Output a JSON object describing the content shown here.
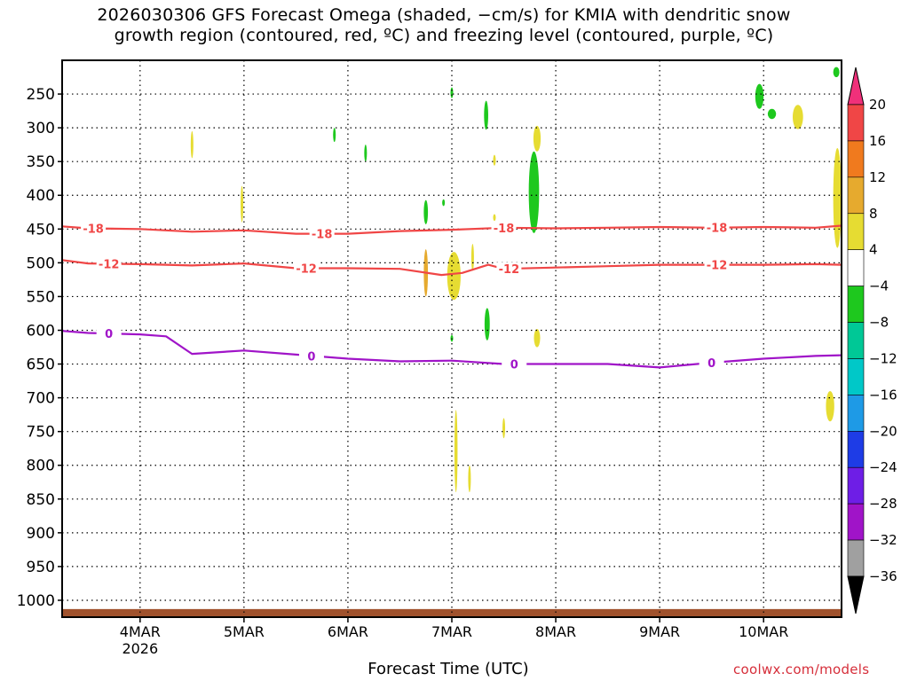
{
  "chart_data": {
    "type": "heatmap",
    "title_line1": "2026030306 GFS Forecast Omega (shaded, −cm/s) for KMIA with dendritic snow",
    "title_line2": "growth region (contoured, red, ºC) and freezing level (contoured, purple, ºC)",
    "xlabel": "Forecast Time (UTC)",
    "x_ticks": [
      {
        "label": "4MAR",
        "sub": "2026",
        "day": 4
      },
      {
        "label": "5MAR",
        "sub": "",
        "day": 5
      },
      {
        "label": "6MAR",
        "sub": "",
        "day": 6
      },
      {
        "label": "7MAR",
        "sub": "",
        "day": 7
      },
      {
        "label": "8MAR",
        "sub": "",
        "day": 8
      },
      {
        "label": "9MAR",
        "sub": "",
        "day": 9
      },
      {
        "label": "10MAR",
        "sub": "",
        "day": 10
      }
    ],
    "xlim": [
      3.25,
      10.75
    ],
    "ylabel": "",
    "y_ticks": [
      250,
      300,
      350,
      400,
      450,
      500,
      550,
      600,
      650,
      700,
      750,
      800,
      850,
      900,
      950,
      1000
    ],
    "ylim": [
      200,
      1025
    ],
    "colorbar": {
      "labels": [
        "20",
        "16",
        "12",
        "8",
        "4",
        "−4",
        "−8",
        "−12",
        "−16",
        "−20",
        "−24",
        "−28",
        "−32",
        "−36"
      ],
      "colors": [
        "#f0307a",
        "#f04646",
        "#f07a1e",
        "#e6aa2e",
        "#e6dc32",
        "#ffffff",
        "#1ec81e",
        "#00c896",
        "#00c8c8",
        "#1e9ae6",
        "#1e3ce6",
        "#6e1ee6",
        "#a014c8",
        "#a0a0a0",
        "#000000"
      ]
    },
    "contours": [
      {
        "name": "-18",
        "color": "#f04646",
        "x": [
          3.25,
          3.5,
          4.0,
          4.5,
          5.0,
          5.5,
          6.0,
          6.5,
          7.0,
          7.5,
          8.0,
          8.5,
          9.0,
          9.5,
          10.0,
          10.5,
          10.75
        ],
        "y": [
          446,
          449,
          450,
          454,
          452,
          457,
          457,
          453,
          451,
          448,
          449,
          448,
          447,
          448,
          447,
          448,
          445
        ],
        "labels": [
          {
            "x": 3.55,
            "text": "-18"
          },
          {
            "x": 5.75,
            "text": "-18"
          },
          {
            "x": 7.5,
            "text": "-18"
          },
          {
            "x": 9.55,
            "text": "-18"
          }
        ]
      },
      {
        "name": "-12",
        "color": "#f04646",
        "x": [
          3.25,
          3.5,
          4.0,
          4.5,
          5.0,
          5.5,
          6.0,
          6.5,
          6.9,
          7.1,
          7.35,
          7.5,
          8.0,
          8.5,
          9.0,
          9.5,
          10.0,
          10.5,
          10.75
        ],
        "y": [
          496,
          501,
          502,
          504,
          501,
          508,
          508,
          509,
          518,
          515,
          503,
          509,
          507,
          505,
          503,
          503,
          503,
          502,
          503
        ],
        "labels": [
          {
            "x": 3.7,
            "text": "-12"
          },
          {
            "x": 5.6,
            "text": "-12"
          },
          {
            "x": 7.55,
            "text": "-12"
          },
          {
            "x": 9.55,
            "text": "-12"
          }
        ]
      },
      {
        "name": "0",
        "color": "#a014c8",
        "x": [
          3.25,
          3.5,
          4.0,
          4.25,
          4.5,
          5.0,
          5.5,
          6.0,
          6.5,
          7.0,
          7.5,
          8.0,
          8.5,
          9.0,
          9.5,
          10.0,
          10.5,
          10.75
        ],
        "y": [
          601,
          604,
          606,
          609,
          635,
          630,
          636,
          642,
          646,
          645,
          650,
          650,
          650,
          655,
          648,
          642,
          638,
          637
        ],
        "labels": [
          {
            "x": 3.7,
            "text": "0"
          },
          {
            "x": 5.65,
            "text": "0"
          },
          {
            "x": 7.6,
            "text": "0"
          },
          {
            "x": 9.5,
            "text": "0"
          }
        ]
      }
    ],
    "shaded_cells": [
      {
        "x": 4.5,
        "y": [
          305,
          345
        ],
        "w": 0.01,
        "color": "#e6dc32"
      },
      {
        "x": 4.98,
        "y": [
          386,
          440
        ],
        "w": 0.01,
        "color": "#e6dc32"
      },
      {
        "x": 5.87,
        "y": [
          300,
          321
        ],
        "w": 0.01,
        "color": "#1ec81e"
      },
      {
        "x": 6.17,
        "y": [
          325,
          350
        ],
        "w": 0.015,
        "color": "#1ec81e"
      },
      {
        "x": 6.75,
        "y": [
          407,
          443
        ],
        "w": 0.04,
        "color": "#1ec81e"
      },
      {
        "x": 6.92,
        "y": [
          406,
          416
        ],
        "w": 0.01,
        "color": "#1ec81e"
      },
      {
        "x": 7.0,
        "y": [
          240,
          256
        ],
        "w": 0.015,
        "color": "#1ec81e"
      },
      {
        "x": 7.33,
        "y": [
          260,
          303
        ],
        "w": 0.04,
        "color": "#1ec81e"
      },
      {
        "x": 7.79,
        "y": [
          335,
          456
        ],
        "w": 0.1,
        "color": "#1ec81e"
      },
      {
        "x": 7.34,
        "y": [
          567,
          615
        ],
        "w": 0.05,
        "color": "#1ec81e"
      },
      {
        "x": 7.0,
        "y": [
          607,
          617
        ],
        "w": 0.01,
        "color": "#1ec81e"
      },
      {
        "x": 9.96,
        "y": [
          235,
          272
        ],
        "w": 0.08,
        "color": "#1ec81e"
      },
      {
        "x": 10.08,
        "y": [
          272,
          287
        ],
        "w": 0.08,
        "color": "#1ec81e"
      },
      {
        "x": 10.7,
        "y": [
          210,
          225
        ],
        "w": 0.06,
        "color": "#1ec81e"
      },
      {
        "x": 7.82,
        "y": [
          297,
          335
        ],
        "w": 0.07,
        "color": "#e6dc32"
      },
      {
        "x": 7.41,
        "y": [
          340,
          356
        ],
        "w": 0.02,
        "color": "#e6dc32"
      },
      {
        "x": 7.41,
        "y": [
          428,
          438
        ],
        "w": 0.02,
        "color": "#e6dc32"
      },
      {
        "x": 6.75,
        "y": [
          480,
          550
        ],
        "w": 0.04,
        "color": "#e6aa2e"
      },
      {
        "x": 7.02,
        "y": [
          484,
          555
        ],
        "w": 0.13,
        "color": "#e6dc32"
      },
      {
        "x": 7.2,
        "y": [
          472,
          512
        ],
        "w": 0.01,
        "color": "#e6dc32"
      },
      {
        "x": 7.82,
        "y": [
          598,
          625
        ],
        "w": 0.06,
        "color": "#e6dc32"
      },
      {
        "x": 10.33,
        "y": [
          266,
          302
        ],
        "w": 0.1,
        "color": "#e6dc32"
      },
      {
        "x": 10.71,
        "y": [
          330,
          478
        ],
        "w": 0.08,
        "color": "#e6dc32"
      },
      {
        "x": 10.64,
        "y": [
          690,
          735
        ],
        "w": 0.08,
        "color": "#e6dc32"
      },
      {
        "x": 7.04,
        "y": [
          718,
          840
        ],
        "w": 0.03,
        "color": "#e6dc32"
      },
      {
        "x": 7.17,
        "y": [
          800,
          840
        ],
        "w": 0.01,
        "color": "#e6dc32"
      },
      {
        "x": 7.5,
        "y": [
          730,
          760
        ],
        "w": 0.01,
        "color": "#e6dc32"
      }
    ],
    "ground": {
      "color": "#a0522d",
      "level": 1013
    },
    "grid": "dotted"
  },
  "watermark": "coolwx.com/models"
}
